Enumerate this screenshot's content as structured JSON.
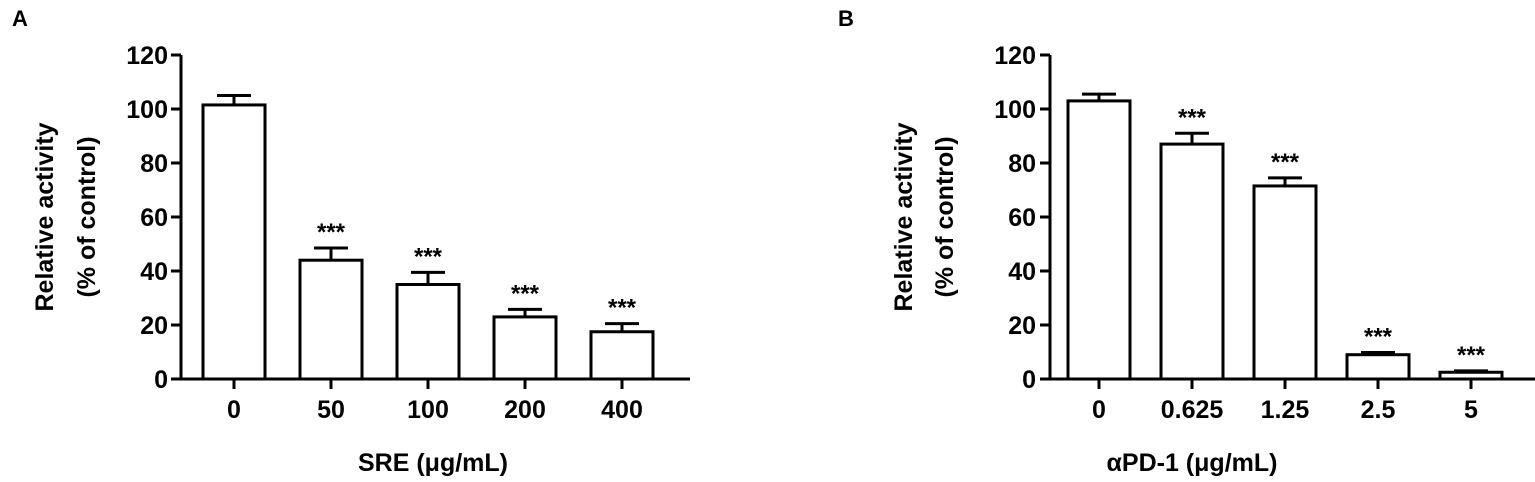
{
  "chart_data": [
    {
      "panel_label": "A",
      "type": "bar",
      "categories": [
        "0",
        "50",
        "100",
        "200",
        "400"
      ],
      "values": [
        101.5,
        44,
        35,
        23,
        17.5
      ],
      "errors": [
        3.5,
        4.5,
        4.5,
        2.8,
        3
      ],
      "significance": [
        "",
        "***",
        "***",
        "***",
        "***"
      ],
      "title": "",
      "xlabel": "SRE (μg/mL)",
      "ylabel_lines": [
        "Relative activity",
        "(% of control)"
      ],
      "ylim": [
        0,
        120
      ],
      "yticks": [
        "0",
        "20",
        "40",
        "60",
        "80",
        "100",
        "120"
      ],
      "grid": false,
      "bar_fill": "#ffffff",
      "bar_stroke": "#000000"
    },
    {
      "panel_label": "B",
      "type": "bar",
      "categories": [
        "0",
        "0.625",
        "1.25",
        "2.5",
        "5"
      ],
      "values": [
        103,
        87,
        71.5,
        9,
        2.5
      ],
      "errors": [
        2.5,
        4,
        3,
        0.8,
        0.5
      ],
      "significance": [
        "",
        "***",
        "***",
        "***",
        "***"
      ],
      "title": "",
      "xlabel": "αPD-1 (μg/mL)",
      "ylabel_lines": [
        "Relative activity",
        "(% of control)"
      ],
      "ylim": [
        0,
        120
      ],
      "yticks": [
        "0",
        "20",
        "40",
        "60",
        "80",
        "100",
        "120"
      ],
      "grid": false,
      "bar_fill": "#ffffff",
      "bar_stroke": "#000000"
    }
  ]
}
